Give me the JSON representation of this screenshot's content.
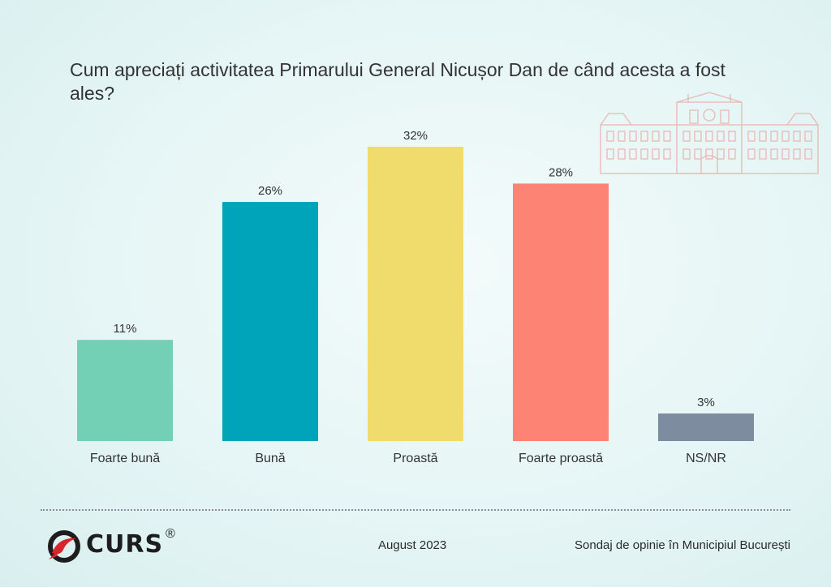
{
  "title": "Cum apreciați activitatea Primarului General Nicușor Dan de când acesta a fost ales?",
  "chart_data": {
    "type": "bar",
    "categories": [
      "Foarte bună",
      "Bună",
      "Proastă",
      "Foarte proastă",
      "NS/NR"
    ],
    "values": [
      11,
      26,
      32,
      28,
      3
    ],
    "data_labels": [
      "11%",
      "26%",
      "32%",
      "28%",
      "3%"
    ],
    "colors": [
      "#74d0b5",
      "#00a4ba",
      "#f0dc6c",
      "#fd8474",
      "#7d8c9f"
    ],
    "ylim": [
      0,
      32
    ],
    "grid": false,
    "xlabel": "",
    "ylabel": ""
  },
  "footer": {
    "logo_text": "CURS",
    "logo_mark": "®",
    "date": "August 2023",
    "source": "Sondaj de opinie în Municipiul București"
  },
  "colors": {
    "logo_red": "#d6252b",
    "building_outline": "#e8b8b4"
  }
}
